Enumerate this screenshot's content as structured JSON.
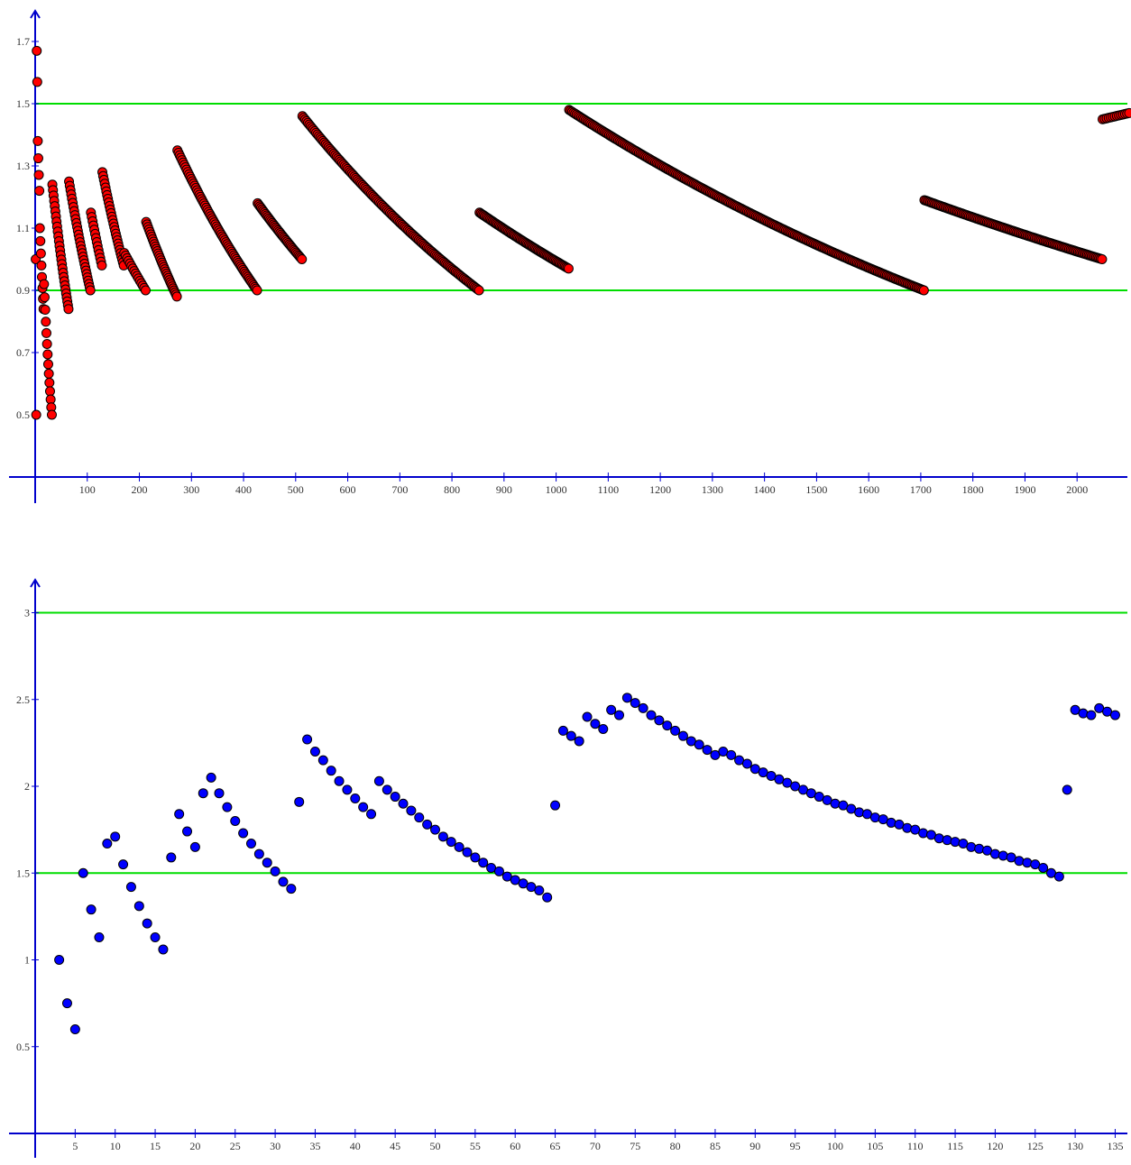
{
  "colors": {
    "axis": "#0000cc",
    "guide": "#00dd00",
    "top_points": "#ff0000",
    "bottom_points": "#0000ff",
    "point_stroke": "#000000"
  },
  "chart_data": [
    {
      "type": "scatter",
      "title": "",
      "xlabel": "",
      "ylabel": "",
      "xlim": [
        0,
        2100
      ],
      "ylim": [
        0.3,
        1.8
      ],
      "x_ticks": [
        100,
        200,
        300,
        400,
        500,
        600,
        700,
        800,
        900,
        1000,
        1100,
        1200,
        1300,
        1400,
        1500,
        1600,
        1700,
        1800,
        1900,
        2000
      ],
      "y_ticks": [
        0.5,
        0.7,
        0.9,
        1.1,
        1.3,
        1.5,
        1.7
      ],
      "y_tick_labels": [
        "0.5",
        "0.7",
        "0.9",
        "1.1",
        "1.3",
        "1.5",
        "1.7"
      ],
      "grid": false,
      "reference_lines_y": [
        0.9,
        1.5
      ],
      "point_color": "#ff0000",
      "segments": [
        {
          "x_start": 1,
          "x_end": 2,
          "y_start": 1.0,
          "y_end": 0.5,
          "n": 2
        },
        {
          "x_start": 3,
          "x_end": 4,
          "y_start": 1.67,
          "y_end": 1.57,
          "n": 2
        },
        {
          "x_start": 5,
          "x_end": 8,
          "y_start": 1.38,
          "y_end": 1.22,
          "n": 4
        },
        {
          "x_start": 9,
          "x_end": 16,
          "y_start": 1.1,
          "y_end": 0.84,
          "n": 8
        },
        {
          "x_start": 17,
          "x_end": 32,
          "y_start": 0.92,
          "y_end": 0.5,
          "n": 14
        },
        {
          "x_start": 33,
          "x_end": 64,
          "y_start": 1.24,
          "y_end": 0.84,
          "n": 28
        },
        {
          "x_start": 65,
          "x_end": 106,
          "y_start": 1.25,
          "y_end": 0.9,
          "n": 30
        },
        {
          "x_start": 107,
          "x_end": 128,
          "y_start": 1.15,
          "y_end": 0.98,
          "n": 14
        },
        {
          "x_start": 129,
          "x_end": 170,
          "y_start": 1.28,
          "y_end": 0.98,
          "n": 28
        },
        {
          "x_start": 171,
          "x_end": 212,
          "y_start": 1.02,
          "y_end": 0.9,
          "n": 16
        },
        {
          "x_start": 213,
          "x_end": 272,
          "y_start": 1.12,
          "y_end": 0.88,
          "n": 34
        },
        {
          "x_start": 273,
          "x_end": 426,
          "y_start": 1.35,
          "y_end": 0.9,
          "n": 70
        },
        {
          "x_start": 427,
          "x_end": 512,
          "y_start": 1.18,
          "y_end": 1.0,
          "n": 40
        },
        {
          "x_start": 513,
          "x_end": 852,
          "y_start": 1.46,
          "y_end": 0.9,
          "n": 130
        },
        {
          "x_start": 853,
          "x_end": 1024,
          "y_start": 1.15,
          "y_end": 0.97,
          "n": 70
        },
        {
          "x_start": 1025,
          "x_end": 1706,
          "y_start": 1.48,
          "y_end": 0.9,
          "n": 240
        },
        {
          "x_start": 1707,
          "x_end": 2048,
          "y_start": 1.19,
          "y_end": 1.0,
          "n": 120
        },
        {
          "x_start": 2049,
          "x_end": 2100,
          "y_start": 1.45,
          "y_end": 1.47,
          "n": 14
        }
      ]
    },
    {
      "type": "scatter",
      "title": "",
      "xlabel": "",
      "ylabel": "",
      "xlim": [
        0,
        136
      ],
      "ylim": [
        0,
        3.2
      ],
      "x_ticks": [
        5,
        10,
        15,
        20,
        25,
        30,
        35,
        40,
        45,
        50,
        55,
        60,
        65,
        70,
        75,
        80,
        85,
        90,
        95,
        100,
        105,
        110,
        115,
        120,
        125,
        130,
        135
      ],
      "y_ticks": [
        0.5,
        1,
        1.5,
        2,
        2.5,
        3
      ],
      "y_tick_labels": [
        "0.5",
        "1",
        "1.5",
        "2",
        "2.5",
        "3"
      ],
      "grid": false,
      "reference_lines_y": [
        1.5,
        3.0
      ],
      "point_color": "#0000ff",
      "points": [
        [
          3,
          1.0
        ],
        [
          4,
          0.75
        ],
        [
          5,
          0.6
        ],
        [
          6,
          1.5
        ],
        [
          7,
          1.29
        ],
        [
          8,
          1.13
        ],
        [
          9,
          1.67
        ],
        [
          10,
          1.71
        ],
        [
          11,
          1.55
        ],
        [
          12,
          1.42
        ],
        [
          13,
          1.31
        ],
        [
          14,
          1.21
        ],
        [
          15,
          1.13
        ],
        [
          16,
          1.06
        ],
        [
          17,
          1.59
        ],
        [
          18,
          1.84
        ],
        [
          19,
          1.74
        ],
        [
          20,
          1.65
        ],
        [
          21,
          1.96
        ],
        [
          22,
          2.05
        ],
        [
          23,
          1.96
        ],
        [
          24,
          1.88
        ],
        [
          25,
          1.8
        ],
        [
          26,
          1.73
        ],
        [
          27,
          1.67
        ],
        [
          28,
          1.61
        ],
        [
          29,
          1.56
        ],
        [
          30,
          1.51
        ],
        [
          31,
          1.45
        ],
        [
          32,
          1.41
        ],
        [
          33,
          1.91
        ],
        [
          34,
          2.27
        ],
        [
          35,
          2.2
        ],
        [
          36,
          2.15
        ],
        [
          37,
          2.09
        ],
        [
          38,
          2.03
        ],
        [
          39,
          1.98
        ],
        [
          40,
          1.93
        ],
        [
          41,
          1.88
        ],
        [
          42,
          1.84
        ],
        [
          43,
          2.03
        ],
        [
          44,
          1.98
        ],
        [
          45,
          1.94
        ],
        [
          46,
          1.9
        ],
        [
          47,
          1.86
        ],
        [
          48,
          1.82
        ],
        [
          49,
          1.78
        ],
        [
          50,
          1.75
        ],
        [
          51,
          1.71
        ],
        [
          52,
          1.68
        ],
        [
          53,
          1.65
        ],
        [
          54,
          1.62
        ],
        [
          55,
          1.59
        ],
        [
          56,
          1.56
        ],
        [
          57,
          1.53
        ],
        [
          58,
          1.51
        ],
        [
          59,
          1.48
        ],
        [
          60,
          1.46
        ],
        [
          61,
          1.44
        ],
        [
          62,
          1.42
        ],
        [
          63,
          1.4
        ],
        [
          64,
          1.36
        ],
        [
          65,
          1.89
        ],
        [
          66,
          2.32
        ],
        [
          67,
          2.29
        ],
        [
          68,
          2.26
        ],
        [
          69,
          2.4
        ],
        [
          70,
          2.36
        ],
        [
          71,
          2.33
        ],
        [
          72,
          2.44
        ],
        [
          73,
          2.41
        ],
        [
          74,
          2.51
        ],
        [
          75,
          2.48
        ],
        [
          76,
          2.45
        ],
        [
          77,
          2.41
        ],
        [
          78,
          2.38
        ],
        [
          79,
          2.35
        ],
        [
          80,
          2.32
        ],
        [
          81,
          2.29
        ],
        [
          82,
          2.26
        ],
        [
          83,
          2.24
        ],
        [
          84,
          2.21
        ],
        [
          85,
          2.18
        ],
        [
          86,
          2.2
        ],
        [
          87,
          2.18
        ],
        [
          88,
          2.15
        ],
        [
          89,
          2.13
        ],
        [
          90,
          2.1
        ],
        [
          91,
          2.08
        ],
        [
          92,
          2.06
        ],
        [
          93,
          2.04
        ],
        [
          94,
          2.02
        ],
        [
          95,
          2.0
        ],
        [
          96,
          1.98
        ],
        [
          97,
          1.96
        ],
        [
          98,
          1.94
        ],
        [
          99,
          1.92
        ],
        [
          100,
          1.9
        ],
        [
          101,
          1.89
        ],
        [
          102,
          1.87
        ],
        [
          103,
          1.85
        ],
        [
          104,
          1.84
        ],
        [
          105,
          1.82
        ],
        [
          106,
          1.81
        ],
        [
          107,
          1.79
        ],
        [
          108,
          1.78
        ],
        [
          109,
          1.76
        ],
        [
          110,
          1.75
        ],
        [
          111,
          1.73
        ],
        [
          112,
          1.72
        ],
        [
          113,
          1.7
        ],
        [
          114,
          1.69
        ],
        [
          115,
          1.68
        ],
        [
          116,
          1.67
        ],
        [
          117,
          1.65
        ],
        [
          118,
          1.64
        ],
        [
          119,
          1.63
        ],
        [
          120,
          1.61
        ],
        [
          121,
          1.6
        ],
        [
          122,
          1.59
        ],
        [
          123,
          1.57
        ],
        [
          124,
          1.56
        ],
        [
          125,
          1.55
        ],
        [
          126,
          1.53
        ],
        [
          127,
          1.5
        ],
        [
          128,
          1.48
        ],
        [
          129,
          1.98
        ],
        [
          130,
          2.44
        ],
        [
          131,
          2.42
        ],
        [
          132,
          2.41
        ],
        [
          133,
          2.45
        ],
        [
          134,
          2.43
        ],
        [
          135,
          2.41
        ]
      ]
    }
  ]
}
